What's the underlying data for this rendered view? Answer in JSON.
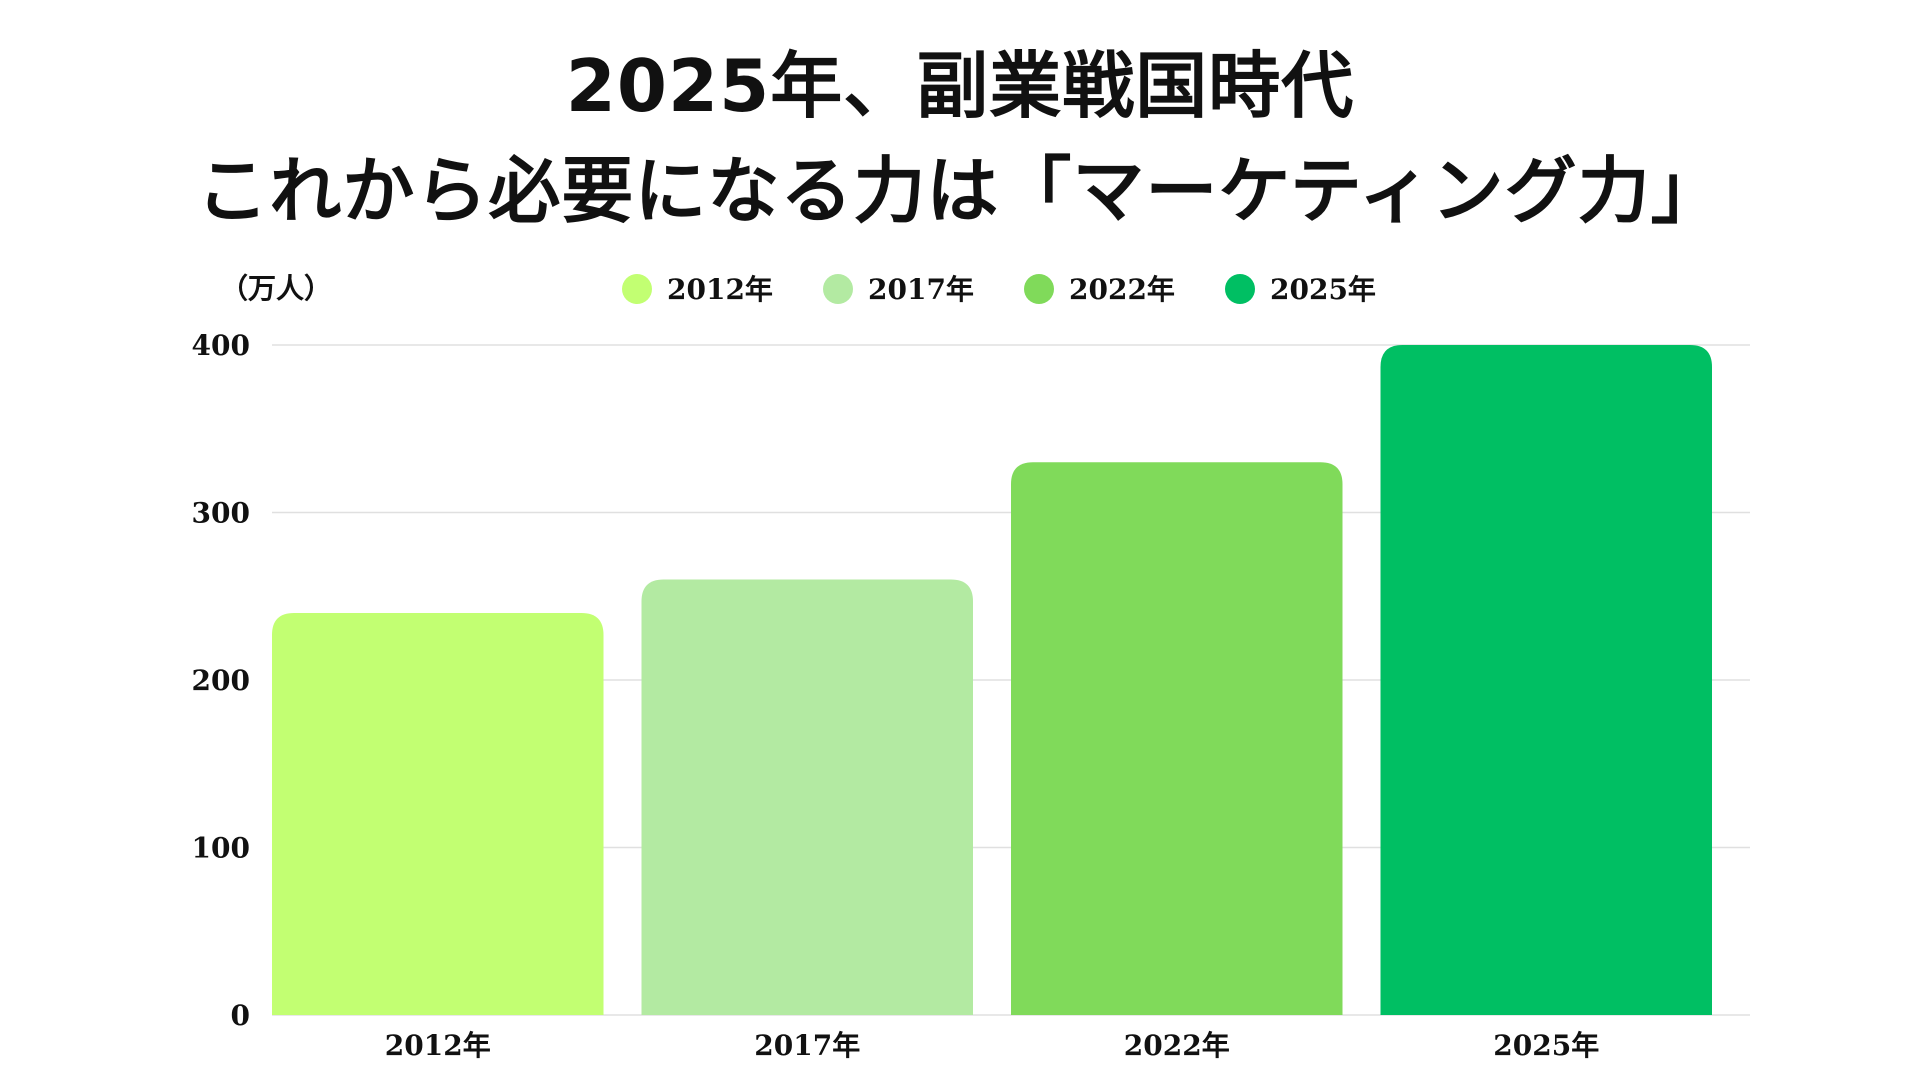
{
  "title_lines": [
    "2025年、副業戦国時代",
    "これから必要になる力は「マーケティング力」"
  ],
  "colors": {
    "background": "#ffffff",
    "gridline": "#e0e0e0",
    "text": "#111111"
  },
  "chart_data": {
    "type": "bar",
    "title": "2025年、副業戦国時代 これから必要になる力は「マーケティング力」",
    "unit_label": "（万人）",
    "categories": [
      "2012年",
      "2017年",
      "2022年",
      "2025年"
    ],
    "values": [
      240,
      260,
      330,
      400
    ],
    "bar_colors": [
      "#c2ff72",
      "#b3eaa2",
      "#80da5a",
      "#00bf63"
    ],
    "legend": [
      {
        "name": "2012年",
        "color": "#c2ff72"
      },
      {
        "name": "2017年",
        "color": "#b3eaa2"
      },
      {
        "name": "2022年",
        "color": "#80da5a"
      },
      {
        "name": "2025年",
        "color": "#00bf63"
      }
    ],
    "legend_position": "top",
    "y_ticks": [
      0,
      100,
      200,
      300,
      400
    ],
    "ylim": [
      0,
      400
    ],
    "grid": true,
    "xlabel": "",
    "ylabel": ""
  }
}
